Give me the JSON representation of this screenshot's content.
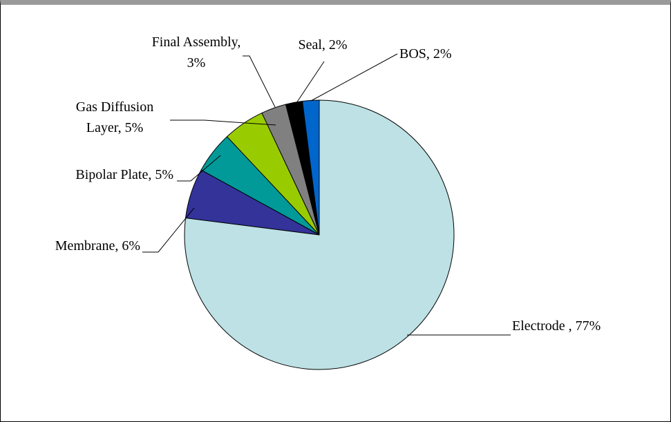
{
  "chart_data": {
    "type": "pie",
    "start": "12 o'clock",
    "direction": "clockwise",
    "slices": [
      {
        "label": "Electrode",
        "display": "Electrode , 77%",
        "value": 77,
        "color": "#bde1e4"
      },
      {
        "label": "Membrane",
        "display": "Membrane, 6%",
        "value": 6,
        "color": "#33339a"
      },
      {
        "label": "Bipolar Plate",
        "display": "Bipolar Plate, 5%",
        "value": 5,
        "color": "#029a99"
      },
      {
        "label": "Gas Diffusion Layer",
        "display": "Gas Diffusion|Layer, 5%",
        "value": 5,
        "color": "#99cc00"
      },
      {
        "label": "Final Assembly",
        "display": "Final Assembly,|3%",
        "value": 3,
        "color": "#808080"
      },
      {
        "label": "Seal",
        "display": "Seal, 2%",
        "value": 2,
        "color": "#000000"
      },
      {
        "label": "BOS",
        "display": "BOS, 2%",
        "value": 2,
        "color": "#0066cc"
      }
    ]
  }
}
